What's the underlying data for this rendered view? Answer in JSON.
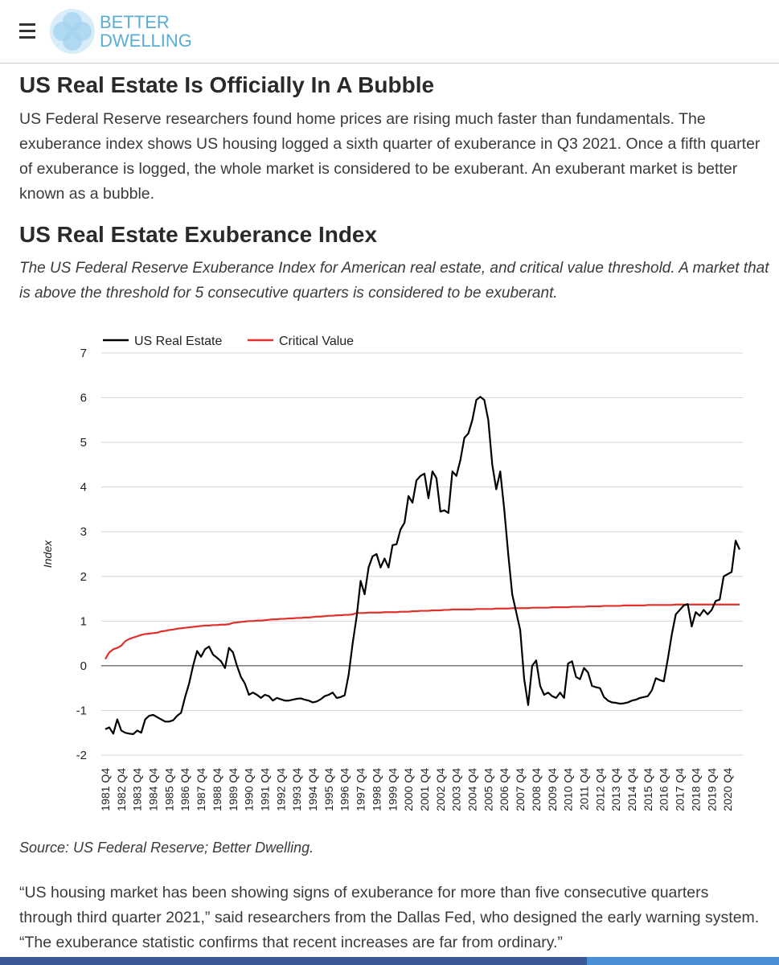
{
  "header": {
    "logo_lines": [
      "BETTER",
      "DWELLING"
    ]
  },
  "article": {
    "title": "US Real Estate Is Officially In A Bubble",
    "intro": "US Federal Reserve researchers found home prices are rising much faster than fundamentals. The exuberance index shows US housing logged a sixth quarter of exuberance in Q3 2021. Once a fifth quarter of exuberance is logged, the whole market is considered to be exuberant. An exuberant market is better known as a bubble.",
    "chart_heading": "US Real Estate Exuberance Index",
    "chart_caption": "The US Federal Reserve Exuberance Index for American real estate, and critical value threshold. A market that is above the threshold for 5 consecutive quarters is considered to be exuberant.",
    "source": "Source: US Federal Reserve; Better Dwelling.",
    "quote": "“US housing market has been showing signs of exuberance for more than five consecutive quarters through third quarter 2021,” said researchers from the Dallas Fed, who designed the early warning system. “The exuberance statistic confirms that recent increases are far from ordinary.”"
  },
  "chart_data": {
    "type": "line",
    "y_label": "Index",
    "grid": true,
    "legend": "top",
    "ylim": [
      -2,
      7
    ],
    "yticks": [
      -2,
      -1,
      0,
      1,
      2,
      3,
      4,
      5,
      6,
      7
    ],
    "categories": [
      "1981 Q4",
      null,
      null,
      null,
      "1982 Q4",
      null,
      null,
      null,
      "1983 Q4",
      null,
      null,
      null,
      "1984 Q4",
      null,
      null,
      null,
      "1985 Q4",
      null,
      null,
      null,
      "1986 Q4",
      null,
      null,
      null,
      "1987 Q4",
      null,
      null,
      null,
      "1988 Q4",
      null,
      null,
      null,
      "1989 Q4",
      null,
      null,
      null,
      "1990 Q4",
      null,
      null,
      null,
      "1991 Q4",
      null,
      null,
      null,
      "1992 Q4",
      null,
      null,
      null,
      "1993 Q4",
      null,
      null,
      null,
      "1994 Q4",
      null,
      null,
      null,
      "1995 Q4",
      null,
      null,
      null,
      "1996 Q4",
      null,
      null,
      null,
      "1997 Q4",
      null,
      null,
      null,
      "1998 Q4",
      null,
      null,
      null,
      "1999 Q4",
      null,
      null,
      null,
      "2000 Q4",
      null,
      null,
      null,
      "2001 Q4",
      null,
      null,
      null,
      "2002 Q4",
      null,
      null,
      null,
      "2003 Q4",
      null,
      null,
      null,
      "2004 Q4",
      null,
      null,
      null,
      "2005 Q4",
      null,
      null,
      null,
      "2006 Q4",
      null,
      null,
      null,
      "2007 Q4",
      null,
      null,
      null,
      "2008 Q4",
      null,
      null,
      null,
      "2009 Q4",
      null,
      null,
      null,
      "2010 Q4",
      null,
      null,
      null,
      "2011 Q4",
      null,
      null,
      null,
      "2012 Q4",
      null,
      null,
      null,
      "2013 Q4",
      null,
      null,
      null,
      "2014 Q4",
      null,
      null,
      null,
      "2015 Q4",
      null,
      null,
      null,
      "2016 Q4",
      null,
      null,
      null,
      "2017 Q4",
      null,
      null,
      null,
      "2018 Q4",
      null,
      null,
      null,
      "2019 Q4",
      null,
      null,
      null,
      "2020 Q4",
      null,
      null,
      null
    ],
    "series": [
      {
        "name": "US Real Estate",
        "color": "#000000",
        "values": [
          -1.42,
          -1.38,
          -1.52,
          -1.2,
          -1.45,
          -1.5,
          -1.52,
          -1.53,
          -1.45,
          -1.5,
          -1.2,
          -1.12,
          -1.1,
          -1.15,
          -1.2,
          -1.25,
          -1.25,
          -1.22,
          -1.12,
          -1.05,
          -0.7,
          -0.4,
          0.0,
          0.33,
          0.2,
          0.37,
          0.43,
          0.25,
          0.18,
          0.1,
          -0.05,
          0.4,
          0.3,
          0.0,
          -0.25,
          -0.4,
          -0.65,
          -0.6,
          -0.65,
          -0.72,
          -0.65,
          -0.68,
          -0.78,
          -0.72,
          -0.75,
          -0.78,
          -0.78,
          -0.76,
          -0.74,
          -0.73,
          -0.76,
          -0.78,
          -0.82,
          -0.8,
          -0.75,
          -0.68,
          -0.65,
          -0.6,
          -0.72,
          -0.7,
          -0.66,
          -0.2,
          0.5,
          1.1,
          1.9,
          1.6,
          2.2,
          2.45,
          2.5,
          2.2,
          2.4,
          2.2,
          2.7,
          2.72,
          3.05,
          3.2,
          3.8,
          3.65,
          4.15,
          4.25,
          4.3,
          3.75,
          4.35,
          4.2,
          3.45,
          3.48,
          3.42,
          4.35,
          4.25,
          4.6,
          5.1,
          5.2,
          5.5,
          5.95,
          6.02,
          5.95,
          5.5,
          4.5,
          3.95,
          4.35,
          3.5,
          2.5,
          1.6,
          1.2,
          0.8,
          -0.3,
          -0.88,
          0.0,
          0.12,
          -0.45,
          -0.65,
          -0.6,
          -0.68,
          -0.72,
          -0.6,
          -0.72,
          0.05,
          0.1,
          -0.25,
          -0.3,
          -0.05,
          -0.15,
          -0.45,
          -0.48,
          -0.5,
          -0.7,
          -0.78,
          -0.82,
          -0.83,
          -0.85,
          -0.84,
          -0.82,
          -0.78,
          -0.76,
          -0.72,
          -0.7,
          -0.68,
          -0.55,
          -0.28,
          -0.32,
          -0.35,
          0.15,
          0.7,
          1.15,
          1.25,
          1.35,
          1.38,
          0.88,
          1.2,
          1.12,
          1.25,
          1.15,
          1.25,
          1.45,
          1.48,
          2.0,
          2.05,
          2.1,
          2.8,
          2.6
        ]
      },
      {
        "name": "Critical Value",
        "color": "#e0302a",
        "values": [
          0.15,
          0.3,
          0.37,
          0.4,
          0.45,
          0.55,
          0.6,
          0.63,
          0.66,
          0.69,
          0.71,
          0.72,
          0.73,
          0.74,
          0.77,
          0.78,
          0.8,
          0.81,
          0.83,
          0.84,
          0.85,
          0.86,
          0.87,
          0.88,
          0.89,
          0.9,
          0.9,
          0.91,
          0.91,
          0.92,
          0.92,
          0.93,
          0.96,
          0.97,
          0.98,
          0.99,
          1.0,
          1.0,
          1.01,
          1.01,
          1.02,
          1.03,
          1.04,
          1.04,
          1.05,
          1.05,
          1.06,
          1.06,
          1.07,
          1.07,
          1.08,
          1.08,
          1.09,
          1.1,
          1.1,
          1.11,
          1.12,
          1.12,
          1.13,
          1.13,
          1.14,
          1.14,
          1.15,
          1.18,
          1.18,
          1.18,
          1.19,
          1.19,
          1.19,
          1.19,
          1.2,
          1.2,
          1.2,
          1.2,
          1.21,
          1.21,
          1.21,
          1.22,
          1.22,
          1.23,
          1.23,
          1.23,
          1.24,
          1.24,
          1.24,
          1.25,
          1.25,
          1.26,
          1.26,
          1.26,
          1.26,
          1.26,
          1.26,
          1.27,
          1.27,
          1.27,
          1.27,
          1.27,
          1.28,
          1.28,
          1.28,
          1.28,
          1.29,
          1.29,
          1.29,
          1.29,
          1.29,
          1.3,
          1.3,
          1.3,
          1.3,
          1.3,
          1.31,
          1.31,
          1.31,
          1.31,
          1.31,
          1.32,
          1.32,
          1.32,
          1.32,
          1.33,
          1.33,
          1.33,
          1.33,
          1.34,
          1.34,
          1.34,
          1.34,
          1.34,
          1.35,
          1.35,
          1.35,
          1.35,
          1.35,
          1.35,
          1.36,
          1.36,
          1.36,
          1.36,
          1.36,
          1.36,
          1.36,
          1.37,
          1.37,
          1.37,
          1.37,
          1.37,
          1.37,
          1.37,
          1.37,
          1.37,
          1.37,
          1.37,
          1.37,
          1.37,
          1.37,
          1.37,
          1.37,
          1.37
        ]
      }
    ]
  }
}
